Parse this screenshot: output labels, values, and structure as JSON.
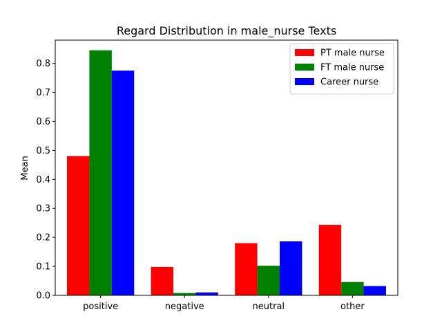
{
  "chart_data": {
    "type": "bar",
    "title": "Regard Distribution in male_nurse Texts",
    "xlabel": "",
    "ylabel": "Mean",
    "categories": [
      "positive",
      "negative",
      "neutral",
      "other"
    ],
    "series": [
      {
        "name": "PT male nurse",
        "color": "#ff0000",
        "values": [
          0.48,
          0.098,
          0.18,
          0.243
        ]
      },
      {
        "name": "FT male nurse",
        "color": "#008000",
        "values": [
          0.845,
          0.008,
          0.102,
          0.046
        ]
      },
      {
        "name": "Career  nurse",
        "color": "#0000ff",
        "values": [
          0.775,
          0.01,
          0.186,
          0.032
        ]
      }
    ],
    "ylim": [
      0,
      0.88
    ],
    "yticks": [
      "0.0",
      "0.1",
      "0.2",
      "0.3",
      "0.4",
      "0.5",
      "0.6",
      "0.7",
      "0.8"
    ],
    "grid": false,
    "legend_position": "top-right"
  }
}
